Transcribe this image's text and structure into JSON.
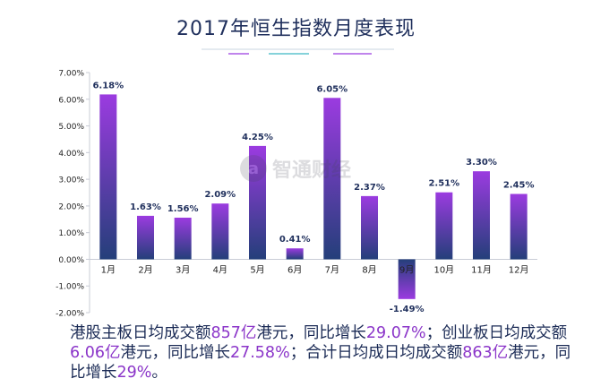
{
  "colors": {
    "bar_top": "#9b3be0",
    "bar_bottom": "#243f7a",
    "title": "#1f2f5c",
    "highlight": "#8b35c9"
  },
  "watermark": {
    "text": "智通财经",
    "icon": "zhitong-logo-icon"
  },
  "note": {
    "p1": "港股主板日均成交额",
    "v1": "857亿",
    "p2": "港元，同比增长",
    "v2": "29.07%",
    "p3": "；创业板日均成交额",
    "v3": "6.06亿",
    "p4": "港元，同比增长",
    "v4": "27.58%",
    "p5": "；合计日均成日均成交额",
    "v5": "863亿",
    "p6": "港元，同比增长",
    "v6": "29%",
    "p7": "。"
  },
  "chart_data": {
    "type": "bar",
    "title": "2017年恒生指数月度表现",
    "categories": [
      "1月",
      "2月",
      "3月",
      "4月",
      "5月",
      "6月",
      "7月",
      "8月",
      "9月",
      "10月",
      "11月",
      "12月"
    ],
    "values": [
      6.18,
      1.63,
      1.56,
      2.09,
      4.25,
      0.41,
      6.05,
      2.37,
      -1.49,
      2.51,
      3.3,
      2.45
    ],
    "value_labels": [
      "6.18%",
      "1.63%",
      "1.56%",
      "2.09%",
      "4.25%",
      "0.41%",
      "6.05%",
      "2.37%",
      "-1.49%",
      "2.51%",
      "3.30%",
      "2.45%"
    ],
    "yticks": [
      7,
      6,
      5,
      4,
      3,
      2,
      1,
      0,
      -1,
      -2
    ],
    "ytick_labels": [
      "7.00%",
      "6.00%",
      "5.00%",
      "4.00%",
      "3.00%",
      "2.00%",
      "1.00%",
      "0.00%",
      "-1.00%",
      "-2.00%"
    ],
    "ylim": [
      -2,
      7
    ],
    "grid": false,
    "legend": "none"
  }
}
